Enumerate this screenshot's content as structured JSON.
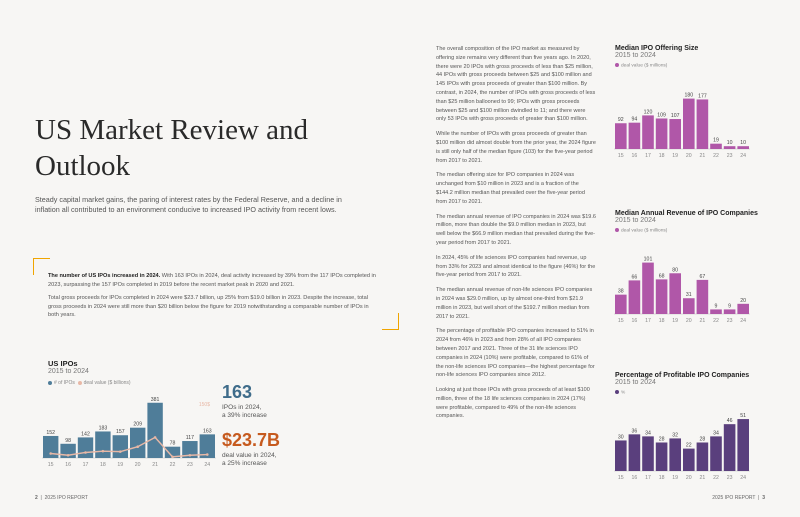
{
  "title": "US Market Review and Outlook",
  "intro": "Steady capital market gains, the paring of interest rates by the Federal Reserve, and a decline in inflation all contributed to an environment conducive to increased IPO activity from recent lows.",
  "highlight": {
    "lead": "The number of US IPOs increased in 2024.",
    "p1_rest": " With 163 IPOs in 2024, deal activity increased by 39% from the 117 IPOs completed in 2023, surpassing the 157 IPOs completed in 2019 before the recent market peak in 2020 and 2021.",
    "p2": "Total gross proceeds for IPOs completed in 2024 were $23.7 billion, up 25% from $19.0 billion in 2023. Despite the increase, total gross proceeds in 2024 were still more than $20 billion below the figure for 2019 notwithstanding a comparable number of IPOs in both years."
  },
  "ipo_chart": {
    "title": "US IPOs",
    "subtitle": "2015 to 2024",
    "legend_count": "# of IPOs",
    "legend_value": "deal value ($ billions)",
    "right_axis_label": "150$",
    "colors": {
      "bar": "#4f7d99",
      "line": "#e8b8a6"
    }
  },
  "stats": {
    "ipo_count": "163",
    "ipo_caption1": "IPOs in 2024,",
    "ipo_caption2": "a 39% increase",
    "deal_value": "$23.7B",
    "deal_caption1": "deal value in 2024,",
    "deal_caption2": "a 25% increase"
  },
  "body_paragraphs": [
    "The overall composition of the IPO market as measured by offering size remains very different than five years ago. In 2020, there were 20 IPOs with gross proceeds of less than $25 million, 44 IPOs with gross proceeds between $25 and $100 million and 145 IPOs with gross proceeds of greater than $100 million. By contrast, in 2024, the number of IPOs with gross proceeds of less than $25 million ballooned to 99; IPOs with gross proceeds between $25 and $100 million dwindled to 11; and there were only 53 IPOs with gross proceeds of greater than $100 million.",
    "While the number of IPOs with gross proceeds of greater than $100 million did almost double from the prior year, the 2024 figure is still only half of the median figure (103) for the five-year period from 2017 to 2021.",
    "The median offering size for IPO companies in 2024 was unchanged from $10 million in 2023 and is a fraction of the $144.2 million median that prevailed over the five-year period from 2017 to 2021.",
    "The median annual revenue of IPO companies in 2024 was $19.6 million, more than double the $9.0 million median in 2023, but well below the $66.9 million median that prevailed during the five-year period from 2017 to 2021.",
    "In 2024, 45% of life sciences IPO companies had revenue, up from 33% for 2023 and almost identical to the figure (46%) for the five-year period from 2017 to 2021.",
    "The median annual revenue of non-life sciences IPO companies in 2024 was $29.0 million, up by almost one-third from $21.9 million in 2023, but well short of the $192.7 million median from 2017 to 2021.",
    "The percentage of profitable IPO companies increased to 51% in 2024 from 46% in 2023 and from 28% of all IPO companies between 2017 and 2021. Three of the 31 life sciences IPO companies in 2024 (10%) were profitable, compared to 61% of the non-life sciences IPO companies—the highest percentage for non-life sciences IPO companies since 2012.",
    "Looking at just those IPOs with gross proceeds of at least $100 million, three of the 18 life sciences companies in 2024 (17%) were profitable, compared to 49% of the non-life sciences companies."
  ],
  "side_charts": {
    "offering": {
      "title": "Median IPO Offering Size",
      "subtitle": "2015 to 2024",
      "legend": "deal value ($ millions)"
    },
    "revenue": {
      "title": "Median Annual Revenue of IPO Companies",
      "subtitle": "2015 to 2024",
      "legend": "deal value ($ millions)"
    },
    "profitable": {
      "title": "Percentage of Profitable IPO Companies",
      "subtitle": "2015 to 2024",
      "legend": "%"
    }
  },
  "footer": {
    "left_page": "2",
    "left_text": "2025 IPO REPORT",
    "right_text": "2025 IPO REPORT",
    "right_page": "3"
  },
  "chart_data": [
    {
      "type": "bar",
      "title": "US IPOs",
      "subtitle": "2015 to 2024",
      "categories": [
        "15",
        "16",
        "17",
        "18",
        "19",
        "20",
        "21",
        "22",
        "23",
        "24"
      ],
      "series": [
        {
          "name": "# of IPOs",
          "values": [
            152,
            98,
            142,
            183,
            157,
            209,
            381,
            78,
            117,
            163
          ]
        },
        {
          "name": "deal value ($ billions)",
          "type": "line",
          "values": [
            31,
            19,
            38,
            47,
            44,
            78,
            142,
            8,
            19,
            24
          ]
        }
      ],
      "ylim": [
        0,
        400
      ]
    },
    {
      "type": "bar",
      "title": "Median IPO Offering Size",
      "subtitle": "2015 to 2024",
      "categories": [
        "15",
        "16",
        "17",
        "18",
        "19",
        "20",
        "21",
        "22",
        "23",
        "24"
      ],
      "values": [
        92,
        94,
        120,
        109,
        107,
        180,
        177,
        19,
        10,
        10
      ],
      "ylim": [
        0,
        200
      ],
      "color": "#b057a8"
    },
    {
      "type": "bar",
      "title": "Median Annual Revenue of IPO Companies",
      "subtitle": "2015 to 2024",
      "categories": [
        "15",
        "16",
        "17",
        "18",
        "19",
        "20",
        "21",
        "22",
        "23",
        "24"
      ],
      "values": [
        38,
        66,
        101,
        68,
        80,
        31,
        67,
        9,
        9,
        20
      ],
      "ylim": [
        0,
        110
      ],
      "color": "#b057a8"
    },
    {
      "type": "bar",
      "title": "Percentage of Profitable IPO Companies",
      "subtitle": "2015 to 2024",
      "categories": [
        "15",
        "16",
        "17",
        "18",
        "19",
        "20",
        "21",
        "22",
        "23",
        "24"
      ],
      "values": [
        30,
        36,
        34,
        28,
        32,
        22,
        28,
        34,
        46,
        51
      ],
      "ylim": [
        0,
        55
      ],
      "color": "#5a3f7d"
    }
  ]
}
